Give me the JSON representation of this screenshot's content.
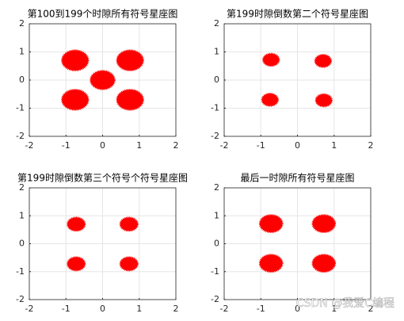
{
  "chart_data": [
    {
      "type": "scatter",
      "title": "第100到199个时隙所有符号星座图",
      "color": "#ff0000",
      "grid": true,
      "x": [
        -0.75,
        0.75,
        0,
        -0.75,
        0.75
      ],
      "y": [
        0.7,
        0.7,
        0,
        -0.7,
        -0.7
      ],
      "sizes": [
        0.36,
        0.36,
        0.33,
        0.36,
        0.36
      ],
      "xlim": [
        -2,
        2
      ],
      "ylim": [
        -2,
        2
      ],
      "xticks": [
        -2,
        -1,
        0,
        1,
        2
      ],
      "yticks": [
        -2,
        -1,
        0,
        1,
        2
      ]
    },
    {
      "type": "scatter",
      "title": "第199时隙倒数第二个符号星座图",
      "color": "#ff0000",
      "grid": true,
      "x": [
        -0.72,
        0.7,
        -0.75,
        0.72
      ],
      "y": [
        0.72,
        0.68,
        -0.7,
        -0.72
      ],
      "sizes": [
        0.22,
        0.22,
        0.22,
        0.22
      ],
      "xlim": [
        -2,
        2
      ],
      "ylim": [
        -2,
        2
      ],
      "xticks": [
        -2,
        -1,
        0,
        1,
        2
      ],
      "yticks": [
        -2,
        -1,
        0,
        1,
        2
      ]
    },
    {
      "type": "scatter",
      "title": "第199时隙倒数第三个符号个符号星座图",
      "color": "#ff0000",
      "grid": true,
      "x": [
        -0.72,
        0.72,
        -0.72,
        0.72
      ],
      "y": [
        0.7,
        0.7,
        -0.72,
        -0.72
      ],
      "sizes": [
        0.24,
        0.24,
        0.24,
        0.24
      ],
      "xlim": [
        -2,
        2
      ],
      "ylim": [
        -2,
        2
      ],
      "xticks": [
        -2,
        -1,
        0,
        1,
        2
      ],
      "yticks": [
        -2,
        -1,
        0,
        1,
        2
      ]
    },
    {
      "type": "scatter",
      "title": "最后一时隙所有符号星座图",
      "color": "#ff0000",
      "grid": true,
      "x": [
        -0.72,
        0.72,
        -0.72,
        0.72
      ],
      "y": [
        0.72,
        0.72,
        -0.7,
        -0.7
      ],
      "sizes": [
        0.31,
        0.31,
        0.31,
        0.31
      ],
      "xlim": [
        -2,
        2
      ],
      "ylim": [
        -2,
        2
      ],
      "xticks": [
        -2,
        -1,
        0,
        1,
        2
      ],
      "yticks": [
        -2,
        -1,
        0,
        1,
        2
      ]
    }
  ],
  "watermark": "CSDN @我爱C编程"
}
